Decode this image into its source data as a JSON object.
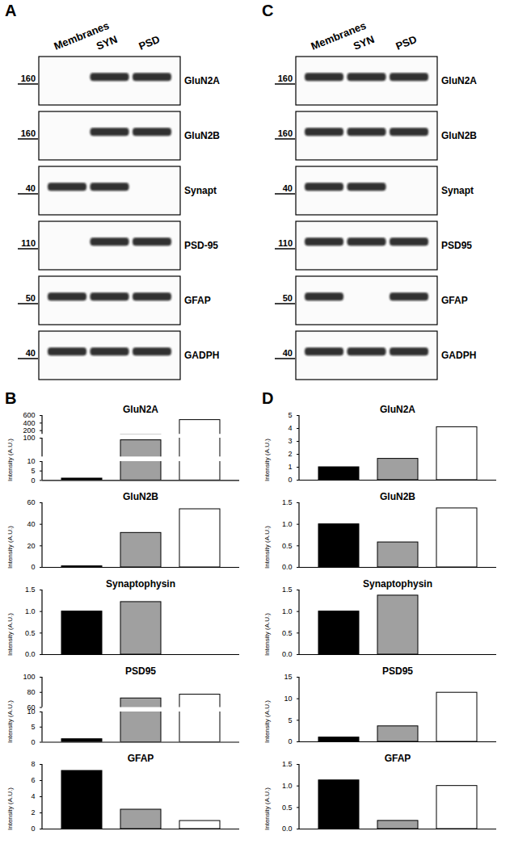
{
  "blots": [
    {
      "panel": "A",
      "lanes": [
        "Membranes",
        "SYN",
        "PSD"
      ],
      "rows": [
        {
          "protein": "GluN2A",
          "mw": 160,
          "bands": [
            0,
            1,
            1
          ]
        },
        {
          "protein": "GluN2B",
          "mw": 160,
          "bands": [
            0,
            1,
            1
          ]
        },
        {
          "protein": "Synapt",
          "mw": 40,
          "bands": [
            1,
            1,
            0
          ]
        },
        {
          "protein": "PSD-95",
          "mw": 110,
          "bands": [
            0,
            1,
            1
          ]
        },
        {
          "protein": "GFAP",
          "mw": 50,
          "bands": [
            1,
            1,
            1
          ]
        },
        {
          "protein": "GADPH",
          "mw": 40,
          "bands": [
            1,
            1,
            1
          ]
        }
      ]
    },
    {
      "panel": "C",
      "lanes": [
        "Membranes",
        "SYN",
        "PSD"
      ],
      "rows": [
        {
          "protein": "GluN2A",
          "mw": 160,
          "bands": [
            1,
            1,
            1
          ]
        },
        {
          "protein": "GluN2B",
          "mw": 160,
          "bands": [
            1,
            1,
            1
          ]
        },
        {
          "protein": "Synapt",
          "mw": 40,
          "bands": [
            1,
            1,
            0
          ]
        },
        {
          "protein": "PSD95",
          "mw": 110,
          "bands": [
            1,
            1,
            1
          ]
        },
        {
          "protein": "GFAP",
          "mw": 50,
          "bands": [
            1,
            0,
            1
          ]
        },
        {
          "protein": "GADPH",
          "mw": 40,
          "bands": [
            1,
            1,
            1
          ]
        }
      ]
    }
  ],
  "chart_data": [
    {
      "panel": "B",
      "type": "bar",
      "title": "GluN2A",
      "ylabel": "Intensity (A.U.)",
      "categories": [
        null,
        null,
        null
      ],
      "values": [
        1,
        90,
        480
      ],
      "colors": [
        "#000000",
        "#a0a0a0",
        "#ffffff"
      ],
      "tick_labels": "y",
      "axis_segments": [
        {
          "ylim": [
            0,
            10
          ],
          "yticks": [
            0,
            5,
            10
          ]
        },
        {
          "ylim": [
            10,
            100
          ],
          "yticks": [
            100
          ]
        },
        {
          "ylim": [
            100,
            600
          ],
          "yticks": [
            200,
            400,
            600
          ]
        }
      ]
    },
    {
      "panel": "B",
      "type": "bar",
      "title": "GluN2B",
      "ylabel": "Intensity (A.U.)",
      "categories": [
        null,
        null,
        null
      ],
      "values": [
        1,
        32,
        54
      ],
      "colors": [
        "#000000",
        "#a0a0a0",
        "#ffffff"
      ],
      "tick_labels": "y",
      "ylim": [
        0,
        60
      ],
      "yticks": [
        0,
        20,
        40,
        60
      ]
    },
    {
      "panel": "B",
      "type": "bar",
      "title": "Synaptophysin",
      "ylabel": "Intensity (A.U.)",
      "categories": [
        null,
        null,
        null
      ],
      "values": [
        1.0,
        1.22,
        0
      ],
      "colors": [
        "#000000",
        "#a0a0a0",
        "#ffffff"
      ],
      "tick_labels": "y",
      "ylim": [
        0,
        1.5
      ],
      "yticks": [
        {
          "value": 0,
          "label": "0.0"
        },
        0.5,
        {
          "value": 1,
          "label": "1.0"
        },
        1.5
      ]
    },
    {
      "panel": "B",
      "type": "bar",
      "title": "PSD95",
      "ylabel": "Intensity (A.U.)",
      "categories": [
        null,
        null,
        null
      ],
      "values": [
        1,
        72,
        77
      ],
      "colors": [
        "#000000",
        "#a0a0a0",
        "#ffffff"
      ],
      "tick_labels": "y",
      "axis_segments": [
        {
          "ylim": [
            0,
            10
          ],
          "yticks": [
            0,
            5,
            10
          ]
        },
        {
          "ylim": [
            60,
            100
          ],
          "yticks": [
            60,
            80,
            100
          ]
        }
      ]
    },
    {
      "panel": "B",
      "type": "bar",
      "title": "GFAP",
      "ylabel": "Intensity (A.U.)",
      "categories": [
        null,
        null,
        null
      ],
      "values": [
        7.2,
        2.4,
        1.0
      ],
      "colors": [
        "#000000",
        "#a0a0a0",
        "#ffffff"
      ],
      "tick_labels": "y",
      "ylim": [
        0,
        8
      ],
      "yticks": [
        0,
        2,
        4,
        6,
        8
      ]
    },
    {
      "panel": "D",
      "type": "bar",
      "title": "GluN2A",
      "ylabel": "Intensity (A.U.)",
      "categories": [
        null,
        null,
        null
      ],
      "values": [
        1.0,
        1.65,
        4.1
      ],
      "colors": [
        "#000000",
        "#a0a0a0",
        "#ffffff"
      ],
      "tick_labels": "y",
      "ylim": [
        0,
        5
      ],
      "yticks": [
        0,
        1,
        2,
        3,
        4,
        5
      ]
    },
    {
      "panel": "D",
      "type": "bar",
      "title": "GluN2B",
      "ylabel": "Intensity (A.U.)",
      "categories": [
        null,
        null,
        null
      ],
      "values": [
        1.0,
        0.58,
        1.37
      ],
      "colors": [
        "#000000",
        "#a0a0a0",
        "#ffffff"
      ],
      "tick_labels": "y",
      "ylim": [
        0,
        1.5
      ],
      "yticks": [
        {
          "value": 0,
          "label": "0.0"
        },
        0.5,
        {
          "value": 1,
          "label": "1.0"
        },
        1.5
      ]
    },
    {
      "panel": "D",
      "type": "bar",
      "title": "Synaptophysin",
      "ylabel": "Intensity (A.U.)",
      "categories": [
        null,
        null,
        null
      ],
      "values": [
        1.0,
        1.37,
        0
      ],
      "colors": [
        "#000000",
        "#a0a0a0",
        "#ffffff"
      ],
      "tick_labels": "y",
      "ylim": [
        0,
        1.5
      ],
      "yticks": [
        {
          "value": 0,
          "label": "0.0"
        },
        0.5,
        {
          "value": 1,
          "label": "1.0"
        },
        1.5
      ]
    },
    {
      "panel": "D",
      "type": "bar",
      "title": "PSD95",
      "ylabel": "Intensity (A.U.)",
      "categories": [
        null,
        null,
        null
      ],
      "values": [
        1.0,
        3.6,
        11.4
      ],
      "colors": [
        "#000000",
        "#a0a0a0",
        "#ffffff"
      ],
      "tick_labels": "y",
      "ylim": [
        0,
        15
      ],
      "yticks": [
        0,
        5,
        10,
        15
      ]
    },
    {
      "panel": "D",
      "type": "bar",
      "title": "GFAP",
      "ylabel": "Intensity (A.U.)",
      "categories": [
        null,
        null,
        null
      ],
      "values": [
        1.13,
        0.19,
        1.0
      ],
      "colors": [
        "#000000",
        "#a0a0a0",
        "#ffffff"
      ],
      "tick_labels": "y",
      "ylim": [
        0,
        1.5
      ],
      "yticks": [
        {
          "value": 0,
          "label": "0.0"
        },
        0.5,
        {
          "value": 1,
          "label": "1.0"
        },
        1.5
      ]
    }
  ]
}
